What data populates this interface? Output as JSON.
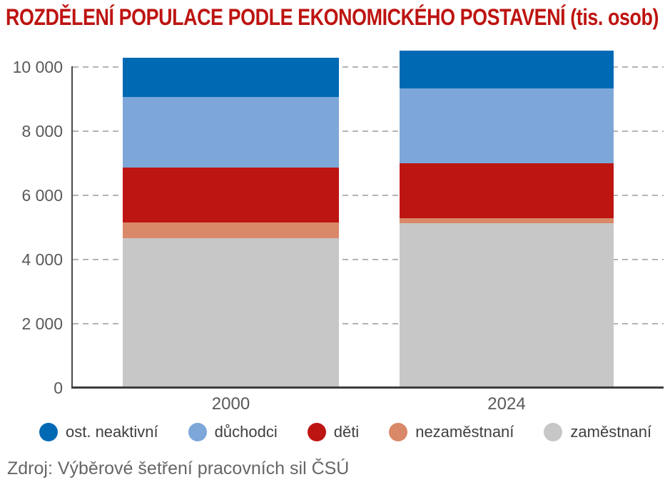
{
  "title": "ROZDĚLENÍ POPULACE PODLE EKONOMICKÉHO POSTAVENÍ (tis. osob)",
  "source": "Zdroj: Výběrové šetření pracovních sil ČSÚ",
  "colors": {
    "title_text": "#bd1411",
    "axis_line": "#4a4a4a",
    "baseline": "#3c3c3c",
    "gridline": "#b3b3b3",
    "tick_label": "#595959",
    "legend_text": "#404040",
    "source_text": "#666666",
    "background": "#ffffff"
  },
  "chart_data": {
    "type": "bar",
    "stacked": true,
    "title": "ROZDĚLENÍ POPULACE PODLE EKONOMICKÉHO POSTAVENÍ (tis. osob)",
    "xlabel": "",
    "ylabel": "tis. osob",
    "categories": [
      "2000",
      "2024"
    ],
    "series": [
      {
        "name": "zaměstnaní",
        "color": "#c7c7c7",
        "values": [
          4670,
          5130
        ]
      },
      {
        "name": "nezaměstnaní",
        "color": "#d98868",
        "values": [
          490,
          170
        ]
      },
      {
        "name": "děti",
        "color": "#bd1512",
        "values": [
          1710,
          1710
        ]
      },
      {
        "name": "důchodci",
        "color": "#7da7d9",
        "values": [
          2200,
          2320
        ]
      },
      {
        "name": "ost. neaktivní",
        "color": "#0069b4",
        "values": [
          1230,
          1180
        ]
      }
    ],
    "totals": [
      10300,
      10510
    ],
    "yticks": [
      0,
      2000,
      4000,
      6000,
      8000,
      10000
    ],
    "ytick_labels": [
      "0",
      "2 000",
      "4 000",
      "6 000",
      "8 000",
      "10 000"
    ],
    "ylim": [
      0,
      10760
    ],
    "grid": "horizontal-dashed",
    "legend_position": "bottom",
    "legend_order": [
      "ost. neaktivní",
      "důchodci",
      "děti",
      "nezaměstnaní",
      "zaměstnaní"
    ]
  }
}
